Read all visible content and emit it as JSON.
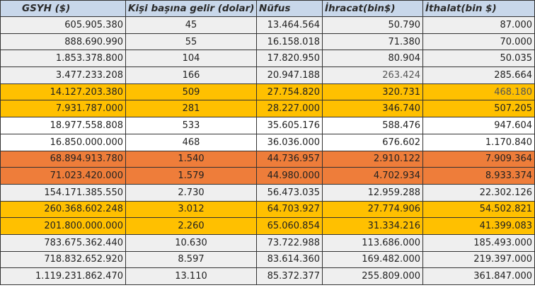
{
  "headers": [
    "GSYH ($)",
    "Kişi başına gelir (dolar)",
    "Nüfus",
    "İhracat(bin$)",
    "İthalat(bin $)"
  ],
  "row_colors": {
    "grey": "#efefef",
    "white": "#ffffff",
    "yellow": "#ffc000",
    "orange": "#ee7d3a",
    "header": "#c8d7ea"
  },
  "rows": [
    {
      "style": "grey",
      "cells": [
        "605.905.380",
        "45",
        "13.464.564",
        "50.790",
        "87.000"
      ]
    },
    {
      "style": "grey",
      "cells": [
        "888.690.990",
        "55",
        "16.158.018",
        "71.380",
        "70.000"
      ]
    },
    {
      "style": "grey",
      "cells": [
        "1.853.378.800",
        "104",
        "17.820.950",
        "80.904",
        "50.035"
      ]
    },
    {
      "style": "grey",
      "cells": [
        "3.477.233.208",
        "166",
        "20.947.188",
        "263.424",
        "285.664"
      ]
    },
    {
      "style": "yellow",
      "cells": [
        "14.127.203.380",
        "509",
        "27.754.820",
        "320.731",
        "468.180"
      ]
    },
    {
      "style": "yellow",
      "cells": [
        "7.931.787.000",
        "281",
        "28.227.000",
        "346.740",
        "507.205"
      ]
    },
    {
      "style": "white",
      "cells": [
        "18.977.558.808",
        "533",
        "35.605.176",
        "588.476",
        "947.604"
      ]
    },
    {
      "style": "white",
      "cells": [
        "16.850.000.000",
        "468",
        "36.036.000",
        "676.602",
        "1.170.840"
      ]
    },
    {
      "style": "orange",
      "cells": [
        "68.894.913.780",
        "1.540",
        "44.736.957",
        "2.910.122",
        "7.909.364"
      ]
    },
    {
      "style": "orange",
      "cells": [
        "71.023.420.000",
        "1.579",
        "44.980.000",
        "4.702.934",
        "8.933.374"
      ]
    },
    {
      "style": "grey",
      "cells": [
        "154.171.385.550",
        "2.730",
        "56.473.035",
        "12.959.288",
        "22.302.126"
      ]
    },
    {
      "style": "yellow",
      "cells": [
        "260.368.602.248",
        "3.012",
        "64.703.927",
        "27.774.906",
        "54.502.821"
      ]
    },
    {
      "style": "yellow",
      "cells": [
        "201.800.000.000",
        "2.260",
        "65.060.854",
        "31.334.216",
        "41.399.083"
      ]
    },
    {
      "style": "grey",
      "cells": [
        "783.675.362.440",
        "10.630",
        "73.722.988",
        "113.686.000",
        "185.493.000"
      ]
    },
    {
      "style": "grey",
      "cells": [
        "718.832.652.920",
        "8.597",
        "83.614.360",
        "169.482.000",
        "219.397.000"
      ]
    },
    {
      "style": "grey",
      "cells": [
        "1.119.231.862.470",
        "13.110",
        "85.372.377",
        "255.809.000",
        "361.847.000"
      ]
    }
  ]
}
